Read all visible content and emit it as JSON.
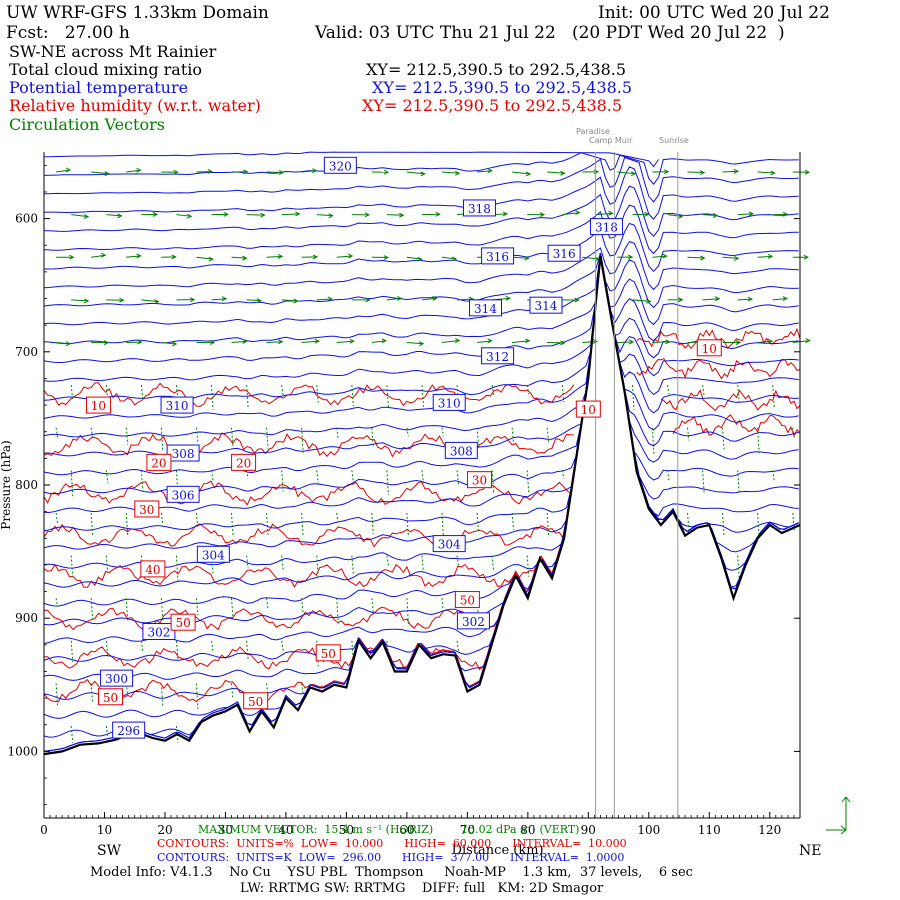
{
  "header": {
    "model_domain": "UW WRF-GFS 1.33km Domain",
    "init": "Init: 00 UTC Wed 20 Jul 22",
    "fcst": "Fcst:   27.00 h",
    "valid": "Valid: 03 UTC Thu 21 Jul 22   (20 PDT Wed 20 Jul 22  )",
    "section": "SW-NE across Mt Rainier",
    "lines": [
      {
        "label": "Total cloud mixing ratio",
        "xy": "XY= 212.5,390.5 to 292.5,438.5",
        "color": "#000000"
      },
      {
        "label": "Potential temperature",
        "xy": "XY= 212.5,390.5 to 292.5,438.5",
        "color": "#1010dd"
      },
      {
        "label": "Relative humidity (w.r.t. water)",
        "xy": "XY= 212.5,390.5 to 292.5,438.5",
        "color": "#e00000"
      },
      {
        "label": "Circulation Vectors",
        "xy": "",
        "color": "#008000"
      }
    ]
  },
  "sites": {
    "paradise": "Paradise",
    "camp_muir": "Camp Muir",
    "sunrise": "Sunrise"
  },
  "footer": {
    "max_vector": "MAXIMUM VECTOR:  15.4 m s⁻¹ (HORIZ)        15.02 dPa s⁻¹ (VERT)",
    "rh_contours": "CONTOURS:  UNITS=%  LOW=  10.000      HIGH=  60.000      INTERVAL=  10.000",
    "th_contours": "CONTOURS:  UNITS=K  LOW=  296.00      HIGH=  377.00      INTERVAL=  1.0000",
    "sw": "SW",
    "ne": "NE",
    "model_info": "Model Info: V4.1.3    No Cu    YSU PBL  Thompson     Noah-MP    1.3 km,  37 levels,    6 sec",
    "model_info2": "LW: RRTMG SW: RRTMG    DIFF: full   KM: 2D Smagor"
  },
  "colors": {
    "theta": "#1010dd",
    "rh": "#e00000",
    "vectors": "#008000",
    "terrain": "#000000",
    "site_lines": "#9a9a9a"
  },
  "chart_data": {
    "type": "line",
    "title": "SW-NE across Mt Rainier",
    "xlabel": "Distance (km)",
    "ylabel": "Pressure (hPa)",
    "xlim": [
      0,
      125
    ],
    "ylim": [
      1050,
      550
    ],
    "x_ticks": [
      0,
      10,
      20,
      30,
      40,
      50,
      60,
      70,
      80,
      90,
      100,
      110,
      120
    ],
    "y_ticks": [
      600,
      700,
      800,
      900,
      1000
    ],
    "y_tick_labels": [
      "600",
      "700",
      "800",
      "900",
      "1000"
    ],
    "site_markers_km": [
      {
        "name": "Paradise",
        "x": 91.2
      },
      {
        "name": "Camp Muir",
        "x": 94.3
      },
      {
        "name": "Sunrise",
        "x": 104.8
      }
    ],
    "terrain": {
      "x": [
        0,
        3,
        6,
        9,
        12,
        15,
        18,
        20,
        22,
        24,
        26,
        28,
        30,
        32,
        34,
        36,
        38,
        40,
        42,
        44,
        46,
        48,
        50,
        52,
        54,
        56,
        58,
        60,
        62,
        64,
        66,
        68,
        70,
        72,
        74,
        76,
        78,
        80,
        82,
        84,
        86,
        88,
        90,
        92,
        94,
        96,
        98,
        100,
        102,
        104,
        106,
        108,
        110,
        112,
        114,
        116,
        118,
        120,
        122,
        125
      ],
      "p": [
        1002,
        1000,
        995,
        994,
        991,
        985,
        990,
        992,
        987,
        992,
        978,
        973,
        970,
        965,
        985,
        970,
        982,
        960,
        969,
        952,
        955,
        950,
        952,
        917,
        930,
        918,
        940,
        940,
        920,
        930,
        927,
        928,
        955,
        950,
        920,
        890,
        868,
        885,
        855,
        870,
        840,
        780,
        720,
        628,
        680,
        730,
        790,
        818,
        830,
        820,
        838,
        832,
        830,
        855,
        885,
        860,
        840,
        830,
        836,
        830
      ]
    },
    "theta_contour_labels": [
      {
        "k": 296,
        "x": 14,
        "p": 984
      },
      {
        "k": 300,
        "x": 12,
        "p": 945
      },
      {
        "k": 302,
        "x": 19,
        "p": 910
      },
      {
        "k": 302,
        "x": 71,
        "p": 902
      },
      {
        "k": 304,
        "x": 28,
        "p": 852
      },
      {
        "k": 304,
        "x": 67,
        "p": 844
      },
      {
        "k": 306,
        "x": 23,
        "p": 807
      },
      {
        "k": 308,
        "x": 23,
        "p": 776
      },
      {
        "k": 308,
        "x": 69,
        "p": 774
      },
      {
        "k": 310,
        "x": 22,
        "p": 740
      },
      {
        "k": 310,
        "x": 67,
        "p": 738
      },
      {
        "k": 312,
        "x": 75,
        "p": 703
      },
      {
        "k": 314,
        "x": 73,
        "p": 667
      },
      {
        "k": 314,
        "x": 83,
        "p": 665
      },
      {
        "k": 316,
        "x": 75,
        "p": 628
      },
      {
        "k": 316,
        "x": 86,
        "p": 626
      },
      {
        "k": 318,
        "x": 72,
        "p": 592
      },
      {
        "k": 318,
        "x": 93,
        "p": 606
      },
      {
        "k": 320,
        "x": 49,
        "p": 560
      }
    ],
    "rh_contour_labels": [
      {
        "rh": 10,
        "x": 9,
        "p": 740
      },
      {
        "rh": 10,
        "x": 90,
        "p": 743
      },
      {
        "rh": 10,
        "x": 110,
        "p": 697
      },
      {
        "rh": 20,
        "x": 19,
        "p": 783
      },
      {
        "rh": 20,
        "x": 33,
        "p": 783
      },
      {
        "rh": 30,
        "x": 17,
        "p": 818
      },
      {
        "rh": 30,
        "x": 72,
        "p": 796
      },
      {
        "rh": 40,
        "x": 18,
        "p": 863
      },
      {
        "rh": 50,
        "x": 23,
        "p": 903
      },
      {
        "rh": 50,
        "x": 70,
        "p": 886
      },
      {
        "rh": 50,
        "x": 11,
        "p": 959
      },
      {
        "rh": 50,
        "x": 35,
        "p": 962
      },
      {
        "rh": 50,
        "x": 47,
        "p": 926
      }
    ],
    "max_vector": {
      "horiz_m_s": 15.4,
      "vert_dPa_s": 15.02
    },
    "contours_rh": {
      "units": "%",
      "low": 10.0,
      "high": 60.0,
      "interval": 10.0
    },
    "contours_theta": {
      "units": "K",
      "low": 296.0,
      "high": 377.0,
      "interval": 1.0
    }
  }
}
